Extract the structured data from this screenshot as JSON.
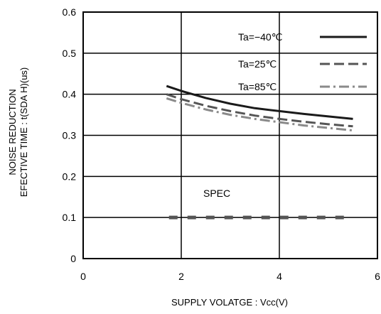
{
  "chart_data": {
    "type": "line",
    "xlabel": "SUPPLY VOLATGE : Vcc(V)",
    "ylabel_lines": [
      "NOISE REDUCTION",
      "EFECTIVE TIME : t(SDA H)(us)"
    ],
    "xlim": [
      0,
      6
    ],
    "ylim": [
      0,
      0.6
    ],
    "x_ticks": [
      0,
      2,
      4,
      6
    ],
    "x_tick_labels": [
      "0",
      "2",
      "4",
      "6"
    ],
    "y_ticks": [
      0,
      0.1,
      0.2,
      0.3,
      0.4,
      0.5,
      0.6
    ],
    "y_tick_labels": [
      "0",
      "0.1",
      "0.2",
      "0.3",
      "0.4",
      "0.5",
      "0.6"
    ],
    "grid": true,
    "legend_position": "top-right",
    "series": [
      {
        "name": "Ta=−40℃",
        "color": "#1a1a1a",
        "dash": "solid",
        "x": [
          1.7,
          2.0,
          2.5,
          3.0,
          3.5,
          4.0,
          4.5,
          5.0,
          5.5
        ],
        "y": [
          0.42,
          0.408,
          0.391,
          0.377,
          0.366,
          0.359,
          0.352,
          0.346,
          0.34
        ]
      },
      {
        "name": "Ta=25℃",
        "color": "#555555",
        "dash": "dashed",
        "x": [
          1.7,
          2.0,
          2.5,
          3.0,
          3.5,
          4.0,
          4.5,
          5.0,
          5.5
        ],
        "y": [
          0.4,
          0.388,
          0.372,
          0.359,
          0.348,
          0.34,
          0.333,
          0.327,
          0.322
        ]
      },
      {
        "name": "Ta=85℃",
        "color": "#8a8a8a",
        "dash": "dashdot",
        "x": [
          1.7,
          2.0,
          2.5,
          3.0,
          3.5,
          4.0,
          4.5,
          5.0,
          5.5
        ],
        "y": [
          0.39,
          0.379,
          0.363,
          0.35,
          0.34,
          0.332,
          0.324,
          0.318,
          0.312
        ]
      }
    ],
    "spec_line": {
      "label": "SPEC",
      "value": 0.1,
      "x_start": 1.75,
      "x_end": 5.5,
      "color": "#555555"
    }
  }
}
